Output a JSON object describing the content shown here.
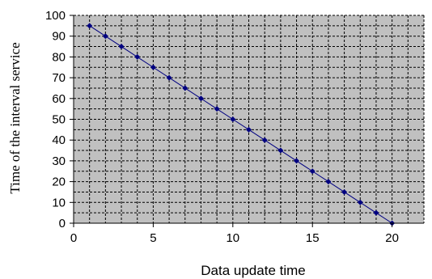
{
  "chart_data": {
    "type": "line",
    "title": "",
    "xlabel": "Data update time",
    "ylabel": "Time of the interval  service",
    "xlim": [
      0,
      22
    ],
    "ylim": [
      0,
      100
    ],
    "x_ticks": [
      0,
      5,
      10,
      15,
      20
    ],
    "y_ticks": [
      0,
      10,
      20,
      30,
      40,
      50,
      60,
      70,
      80,
      90,
      100
    ],
    "grid": true,
    "grid_style": "dashed",
    "plot_background": "#c0c0c0",
    "series": [
      {
        "color": "#000080",
        "marker": "diamond",
        "x": [
          1,
          2,
          3,
          4,
          5,
          6,
          7,
          8,
          9,
          10,
          11,
          12,
          13,
          14,
          15,
          16,
          17,
          18,
          19,
          20
        ],
        "y": [
          95,
          90,
          85,
          80,
          75,
          70,
          65,
          60,
          55,
          50,
          45,
          40,
          35,
          30,
          25,
          20,
          15,
          10,
          5,
          0
        ]
      }
    ]
  }
}
